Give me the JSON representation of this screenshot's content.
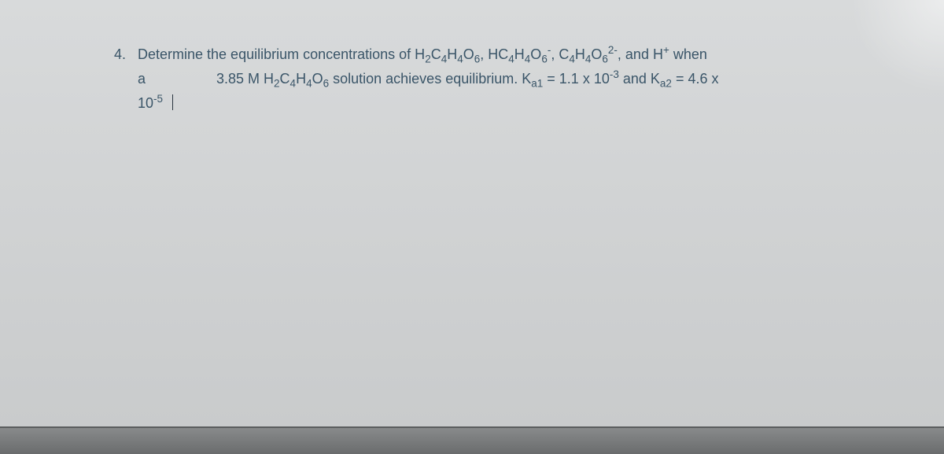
{
  "problem": {
    "number": "4.",
    "line1_pre": "Determine the equilibrium concentrations of H",
    "line1_sub1": "2",
    "line1_mid1": "C",
    "line1_sub2": "4",
    "line1_mid2": "H",
    "line1_sub3": "4",
    "line1_mid3": "O",
    "line1_sub4": "6",
    "line1_mid4": ", HC",
    "line1_sub5": "4",
    "line1_mid5": "H",
    "line1_sub6": "4",
    "line1_mid6": "O",
    "line1_sub7": "6",
    "line1_sup1": "-",
    "line1_mid7": ", C",
    "line1_sub8": "4",
    "line1_mid8": "H",
    "line1_sub9": "4",
    "line1_mid9": "O",
    "line1_sub10": "6",
    "line1_sup2": "2-",
    "line1_mid10": ", and H",
    "line1_sup3": "+",
    "line1_end": " when",
    "line2_label": "a",
    "line2_pre": "3.85 M H",
    "line2_sub1": "2",
    "line2_mid1": "C",
    "line2_sub2": "4",
    "line2_mid2": "H",
    "line2_sub3": "4",
    "line2_mid3": "O",
    "line2_sub4": "6",
    "line2_mid4": " solution achieves equilibrium. K",
    "line2_sub5": "a1",
    "line2_mid5": " = 1.1 x 10",
    "line2_sup1": "-3",
    "line2_mid6": " and K",
    "line2_sub6": "a2",
    "line2_mid7": " = 4.6 x",
    "line3_pre": "10",
    "line3_sup1": "-5"
  },
  "colors": {
    "text": "#3a5568",
    "background_top": "#d8dadb",
    "background_bottom": "#c8cacb",
    "edge": "#6a6c6d"
  }
}
